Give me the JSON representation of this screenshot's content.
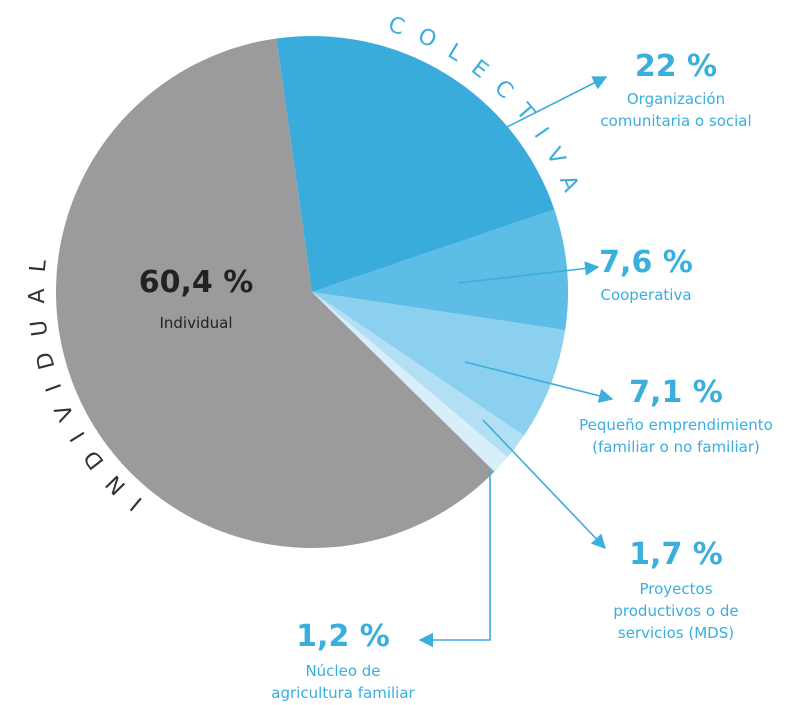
{
  "chart_data": {
    "type": "pie",
    "categories": [
      "Organización comunitaria o social",
      "Cooperativa",
      "Pequeño emprendimiento (familiar o no familiar)",
      "Proyectos productivos o de servicios (MDS)",
      "Núcleo de agricultura familiar",
      "Individual"
    ],
    "values": [
      22,
      7.6,
      7.1,
      1.7,
      1.2,
      60.4
    ],
    "value_labels": [
      "22 %",
      "7,6 %",
      "7,1 %",
      "1,7 %",
      "1,2 %",
      "60,4 %"
    ],
    "colors": [
      "#39acdc",
      "#5ebde6",
      "#8bd0ef",
      "#b2dff4",
      "#d8eff9",
      "#9b9b9d"
    ],
    "annotations": [
      "COLECTIVA",
      "INDIVIDUAL"
    ]
  }
}
